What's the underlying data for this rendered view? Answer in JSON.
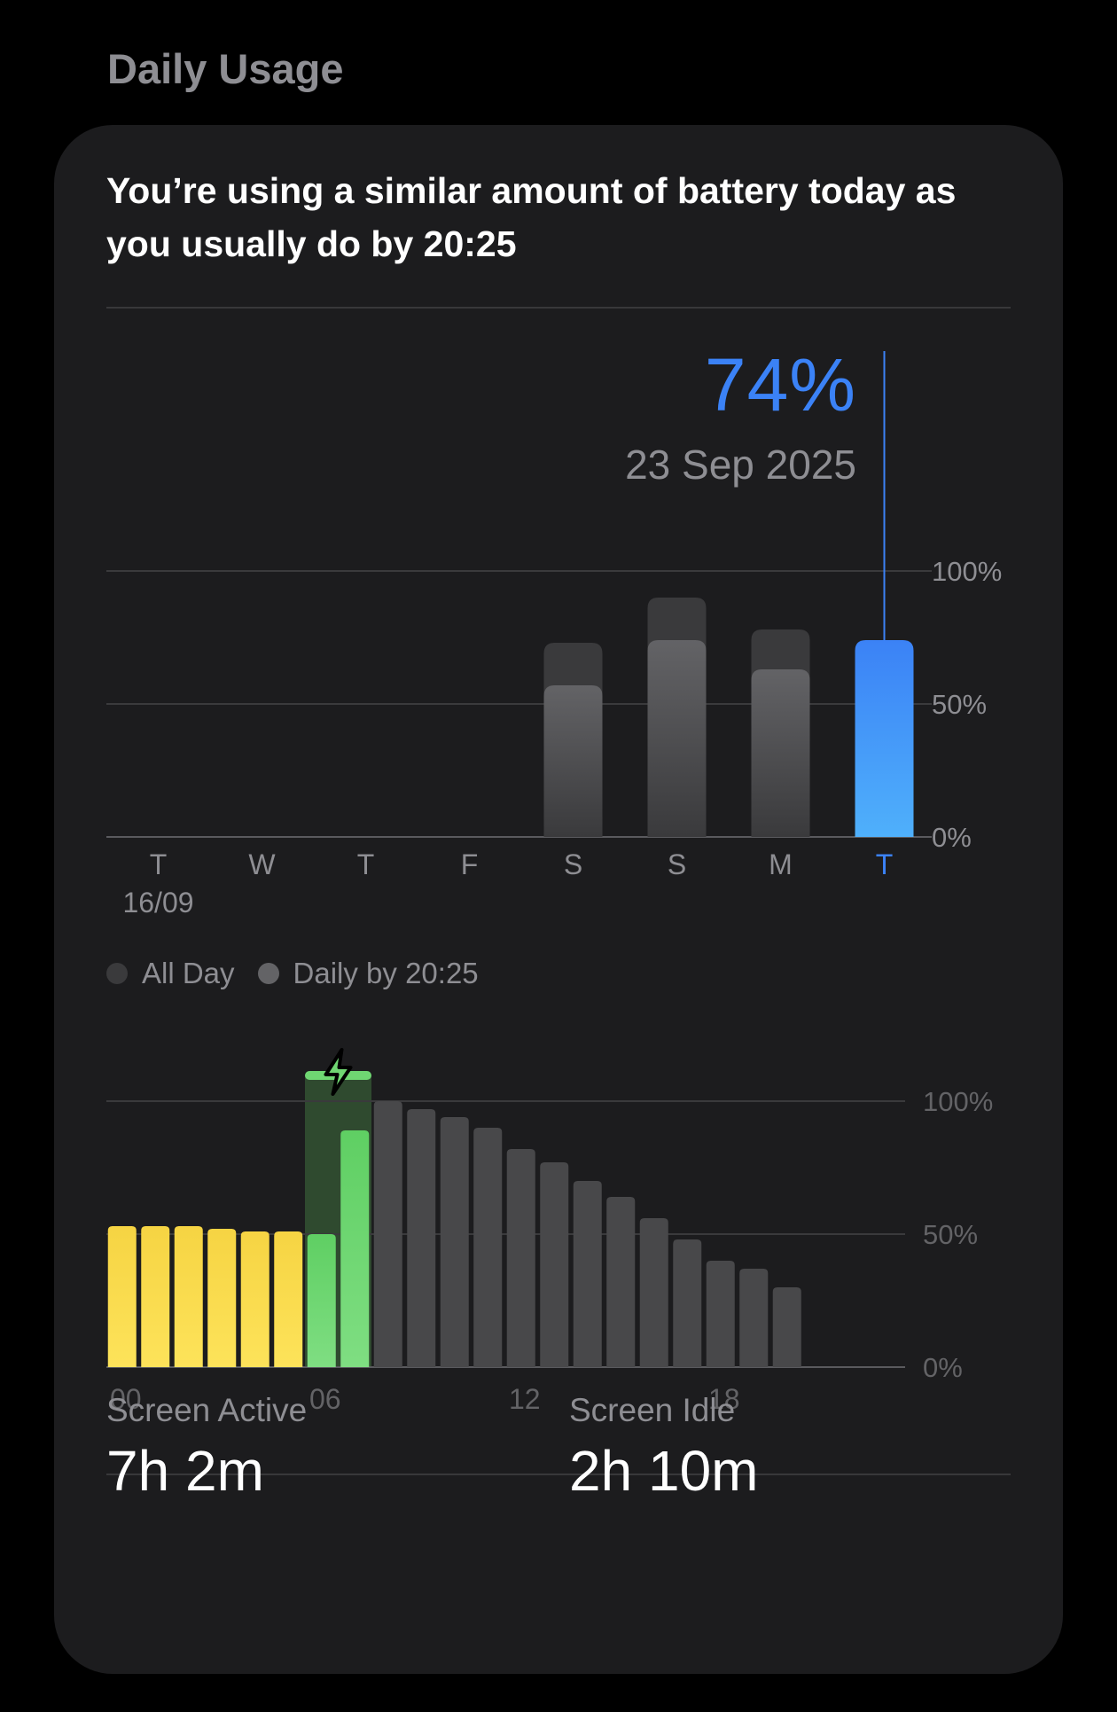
{
  "section_title": "Daily Usage",
  "headline": "You’re using a similar amount of battery today as you usually do by 20:25",
  "selection": {
    "value": "74%",
    "date": "23 Sep 2025"
  },
  "legend": [
    {
      "label": "All Day",
      "color": "#3a3a3c"
    },
    {
      "label": "Daily by 20:25",
      "color": "#636366"
    }
  ],
  "colors": {
    "accent": "#3b82f6",
    "grey_bar": "#5a5a5e",
    "allday_bar": "#3a3a3c",
    "yellow": "#fadb4a",
    "green": "#6fd672",
    "charging_bg": "#2f4a2f",
    "hour_grey": "#48484a"
  },
  "chart_data": [
    {
      "type": "bar",
      "categories": [
        "T",
        "W",
        "T",
        "F",
        "S",
        "S",
        "M",
        "T"
      ],
      "category_sublabels": [
        "16/09",
        "",
        "",
        "",
        "",
        "",
        "",
        ""
      ],
      "selected_index": 7,
      "series": [
        {
          "name": "All Day",
          "values": [
            null,
            null,
            null,
            null,
            73,
            90,
            78,
            74
          ]
        },
        {
          "name": "Daily by 20:25",
          "values": [
            null,
            null,
            null,
            null,
            57,
            74,
            63,
            74
          ]
        }
      ],
      "yticks": [
        "100%",
        "50%",
        "0%"
      ],
      "ylim": [
        0,
        100
      ],
      "legend_position": "bottom-left"
    },
    {
      "type": "bar",
      "x_ticks": [
        "00",
        "06",
        "12",
        "18"
      ],
      "values": [
        53,
        53,
        53,
        52,
        51,
        51,
        50,
        89,
        100,
        97,
        94,
        90,
        82,
        77,
        70,
        64,
        56,
        48,
        40,
        37,
        30
      ],
      "bar_states": [
        "discharging",
        "discharging",
        "discharging",
        "discharging",
        "discharging",
        "discharging",
        "charging",
        "charging",
        "projected",
        "projected",
        "projected",
        "projected",
        "projected",
        "projected",
        "projected",
        "projected",
        "projected",
        "projected",
        "projected",
        "projected",
        "projected"
      ],
      "charging_window": [
        6,
        7
      ],
      "yticks": [
        "100%",
        "50%",
        "0%"
      ],
      "ylim": [
        0,
        100
      ]
    }
  ],
  "stats": [
    {
      "label": "Screen Active",
      "value": "7h 2m"
    },
    {
      "label": "Screen Idle",
      "value": "2h 10m"
    }
  ]
}
